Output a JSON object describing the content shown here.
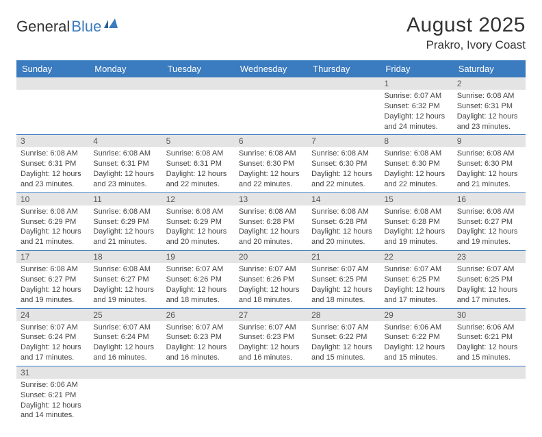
{
  "logo": {
    "text_general": "General",
    "text_blue": "Blue",
    "icon_color": "#3b7bbf"
  },
  "header": {
    "title": "August 2025",
    "location": "Prakro, Ivory Coast"
  },
  "colors": {
    "header_bg": "#3b7bbf",
    "header_text": "#ffffff",
    "daynum_bg": "#e4e4e4",
    "row_divider": "#3b7bbf",
    "body_text": "#444444",
    "title_text": "#333333"
  },
  "weekdays": [
    "Sunday",
    "Monday",
    "Tuesday",
    "Wednesday",
    "Thursday",
    "Friday",
    "Saturday"
  ],
  "weeks": [
    [
      {
        "empty": true
      },
      {
        "empty": true
      },
      {
        "empty": true
      },
      {
        "empty": true
      },
      {
        "empty": true
      },
      {
        "day": "1",
        "sunrise": "Sunrise: 6:07 AM",
        "sunset": "Sunset: 6:32 PM",
        "daylight": "Daylight: 12 hours and 24 minutes."
      },
      {
        "day": "2",
        "sunrise": "Sunrise: 6:08 AM",
        "sunset": "Sunset: 6:31 PM",
        "daylight": "Daylight: 12 hours and 23 minutes."
      }
    ],
    [
      {
        "day": "3",
        "sunrise": "Sunrise: 6:08 AM",
        "sunset": "Sunset: 6:31 PM",
        "daylight": "Daylight: 12 hours and 23 minutes."
      },
      {
        "day": "4",
        "sunrise": "Sunrise: 6:08 AM",
        "sunset": "Sunset: 6:31 PM",
        "daylight": "Daylight: 12 hours and 23 minutes."
      },
      {
        "day": "5",
        "sunrise": "Sunrise: 6:08 AM",
        "sunset": "Sunset: 6:31 PM",
        "daylight": "Daylight: 12 hours and 22 minutes."
      },
      {
        "day": "6",
        "sunrise": "Sunrise: 6:08 AM",
        "sunset": "Sunset: 6:30 PM",
        "daylight": "Daylight: 12 hours and 22 minutes."
      },
      {
        "day": "7",
        "sunrise": "Sunrise: 6:08 AM",
        "sunset": "Sunset: 6:30 PM",
        "daylight": "Daylight: 12 hours and 22 minutes."
      },
      {
        "day": "8",
        "sunrise": "Sunrise: 6:08 AM",
        "sunset": "Sunset: 6:30 PM",
        "daylight": "Daylight: 12 hours and 22 minutes."
      },
      {
        "day": "9",
        "sunrise": "Sunrise: 6:08 AM",
        "sunset": "Sunset: 6:30 PM",
        "daylight": "Daylight: 12 hours and 21 minutes."
      }
    ],
    [
      {
        "day": "10",
        "sunrise": "Sunrise: 6:08 AM",
        "sunset": "Sunset: 6:29 PM",
        "daylight": "Daylight: 12 hours and 21 minutes."
      },
      {
        "day": "11",
        "sunrise": "Sunrise: 6:08 AM",
        "sunset": "Sunset: 6:29 PM",
        "daylight": "Daylight: 12 hours and 21 minutes."
      },
      {
        "day": "12",
        "sunrise": "Sunrise: 6:08 AM",
        "sunset": "Sunset: 6:29 PM",
        "daylight": "Daylight: 12 hours and 20 minutes."
      },
      {
        "day": "13",
        "sunrise": "Sunrise: 6:08 AM",
        "sunset": "Sunset: 6:28 PM",
        "daylight": "Daylight: 12 hours and 20 minutes."
      },
      {
        "day": "14",
        "sunrise": "Sunrise: 6:08 AM",
        "sunset": "Sunset: 6:28 PM",
        "daylight": "Daylight: 12 hours and 20 minutes."
      },
      {
        "day": "15",
        "sunrise": "Sunrise: 6:08 AM",
        "sunset": "Sunset: 6:28 PM",
        "daylight": "Daylight: 12 hours and 19 minutes."
      },
      {
        "day": "16",
        "sunrise": "Sunrise: 6:08 AM",
        "sunset": "Sunset: 6:27 PM",
        "daylight": "Daylight: 12 hours and 19 minutes."
      }
    ],
    [
      {
        "day": "17",
        "sunrise": "Sunrise: 6:08 AM",
        "sunset": "Sunset: 6:27 PM",
        "daylight": "Daylight: 12 hours and 19 minutes."
      },
      {
        "day": "18",
        "sunrise": "Sunrise: 6:08 AM",
        "sunset": "Sunset: 6:27 PM",
        "daylight": "Daylight: 12 hours and 19 minutes."
      },
      {
        "day": "19",
        "sunrise": "Sunrise: 6:07 AM",
        "sunset": "Sunset: 6:26 PM",
        "daylight": "Daylight: 12 hours and 18 minutes."
      },
      {
        "day": "20",
        "sunrise": "Sunrise: 6:07 AM",
        "sunset": "Sunset: 6:26 PM",
        "daylight": "Daylight: 12 hours and 18 minutes."
      },
      {
        "day": "21",
        "sunrise": "Sunrise: 6:07 AM",
        "sunset": "Sunset: 6:25 PM",
        "daylight": "Daylight: 12 hours and 18 minutes."
      },
      {
        "day": "22",
        "sunrise": "Sunrise: 6:07 AM",
        "sunset": "Sunset: 6:25 PM",
        "daylight": "Daylight: 12 hours and 17 minutes."
      },
      {
        "day": "23",
        "sunrise": "Sunrise: 6:07 AM",
        "sunset": "Sunset: 6:25 PM",
        "daylight": "Daylight: 12 hours and 17 minutes."
      }
    ],
    [
      {
        "day": "24",
        "sunrise": "Sunrise: 6:07 AM",
        "sunset": "Sunset: 6:24 PM",
        "daylight": "Daylight: 12 hours and 17 minutes."
      },
      {
        "day": "25",
        "sunrise": "Sunrise: 6:07 AM",
        "sunset": "Sunset: 6:24 PM",
        "daylight": "Daylight: 12 hours and 16 minutes."
      },
      {
        "day": "26",
        "sunrise": "Sunrise: 6:07 AM",
        "sunset": "Sunset: 6:23 PM",
        "daylight": "Daylight: 12 hours and 16 minutes."
      },
      {
        "day": "27",
        "sunrise": "Sunrise: 6:07 AM",
        "sunset": "Sunset: 6:23 PM",
        "daylight": "Daylight: 12 hours and 16 minutes."
      },
      {
        "day": "28",
        "sunrise": "Sunrise: 6:07 AM",
        "sunset": "Sunset: 6:22 PM",
        "daylight": "Daylight: 12 hours and 15 minutes."
      },
      {
        "day": "29",
        "sunrise": "Sunrise: 6:06 AM",
        "sunset": "Sunset: 6:22 PM",
        "daylight": "Daylight: 12 hours and 15 minutes."
      },
      {
        "day": "30",
        "sunrise": "Sunrise: 6:06 AM",
        "sunset": "Sunset: 6:21 PM",
        "daylight": "Daylight: 12 hours and 15 minutes."
      }
    ],
    [
      {
        "day": "31",
        "sunrise": "Sunrise: 6:06 AM",
        "sunset": "Sunset: 6:21 PM",
        "daylight": "Daylight: 12 hours and 14 minutes."
      },
      {
        "empty": true
      },
      {
        "empty": true
      },
      {
        "empty": true
      },
      {
        "empty": true
      },
      {
        "empty": true
      },
      {
        "empty": true
      }
    ]
  ]
}
